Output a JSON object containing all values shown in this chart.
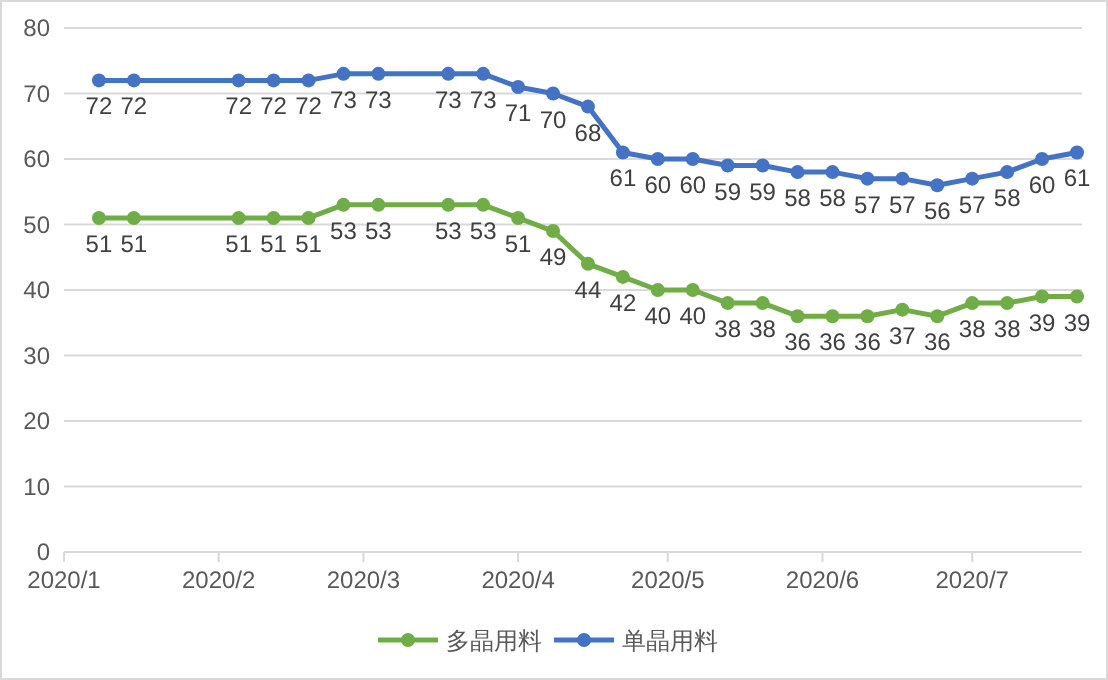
{
  "chart_data": {
    "type": "line",
    "x": [
      "2020-01-08",
      "2020-01-15",
      "2020-02-05",
      "2020-02-12",
      "2020-02-19",
      "2020-02-26",
      "2020-03-04",
      "2020-03-18",
      "2020-03-25",
      "2020-04-01",
      "2020-04-08",
      "2020-04-15",
      "2020-04-22",
      "2020-04-29",
      "2020-05-06",
      "2020-05-13",
      "2020-05-20",
      "2020-05-27",
      "2020-06-03",
      "2020-06-10",
      "2020-06-17",
      "2020-06-24",
      "2020-07-01",
      "2020-07-08",
      "2020-07-15",
      "2020-07-22"
    ],
    "series": [
      {
        "name": "多晶用料",
        "color": "#70ad47",
        "values": [
          51,
          51,
          51,
          51,
          51,
          53,
          53,
          53,
          53,
          51,
          49,
          44,
          42,
          40,
          40,
          38,
          38,
          36,
          36,
          36,
          37,
          36,
          38,
          38,
          39,
          39
        ]
      },
      {
        "name": "单晶用料",
        "color": "#4472c4",
        "values": [
          72,
          72,
          72,
          72,
          72,
          73,
          73,
          73,
          73,
          71,
          70,
          68,
          61,
          60,
          60,
          59,
          59,
          58,
          58,
          57,
          57,
          56,
          57,
          58,
          60,
          61
        ]
      }
    ],
    "xlim": [
      "2020-01-01",
      "2020-07-23"
    ],
    "xticks": [
      {
        "value": "2020-01-01",
        "label": "2020/1"
      },
      {
        "value": "2020-02-01",
        "label": "2020/2"
      },
      {
        "value": "2020-03-01",
        "label": "2020/3"
      },
      {
        "value": "2020-04-01",
        "label": "2020/4"
      },
      {
        "value": "2020-05-01",
        "label": "2020/5"
      },
      {
        "value": "2020-06-01",
        "label": "2020/6"
      },
      {
        "value": "2020-07-01",
        "label": "2020/7"
      }
    ],
    "ylim": [
      0,
      80
    ],
    "yticks": [
      0,
      10,
      20,
      30,
      40,
      50,
      60,
      70,
      80
    ],
    "grid": "y",
    "legend": "bottom",
    "marker": "circle",
    "line_style": "solid",
    "data_labels": true
  }
}
